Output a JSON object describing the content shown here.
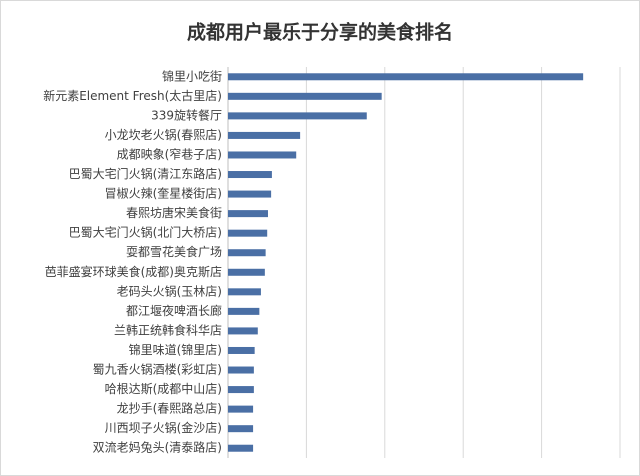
{
  "chart_data": {
    "type": "barh",
    "title": "成都用户最乐于分享的美食排名",
    "categories": [
      "锦里小吃街",
      "新元素Element Fresh(太古里店)",
      "339旋转餐厅",
      "小龙坎老火锅(春熙店)",
      "成都映象(窄巷子店)",
      "巴蜀大宅门火锅(清江东路店)",
      "冒椒火辣(奎星楼街店)",
      "春熙坊唐宋美食街",
      "巴蜀大宅门火锅(北门大桥店)",
      "耍都雪花美食广场",
      "芭菲盛宴环球美食(成都)奥克斯店",
      "老码头火锅(玉林店)",
      "都江堰夜啤酒长廊",
      "兰韩正统韩食科华店",
      "锦里味道(锦里店)",
      "蜀九香火锅酒楼(彩虹店)",
      "哈根达斯(成都中山店)",
      "龙抄手(春熙路总店)",
      "川西坝子火锅(金沙店)",
      "双流老妈兔头(清泰路店)"
    ],
    "values": [
      4.53,
      1.96,
      1.77,
      0.92,
      0.87,
      0.56,
      0.55,
      0.51,
      0.5,
      0.48,
      0.47,
      0.42,
      0.4,
      0.38,
      0.34,
      0.33,
      0.33,
      0.32,
      0.32,
      0.32
    ],
    "color": "#4a6fa5",
    "xlim": [
      0,
      5
    ],
    "xticks": [
      1,
      2,
      3,
      4,
      5
    ],
    "grid": true
  }
}
